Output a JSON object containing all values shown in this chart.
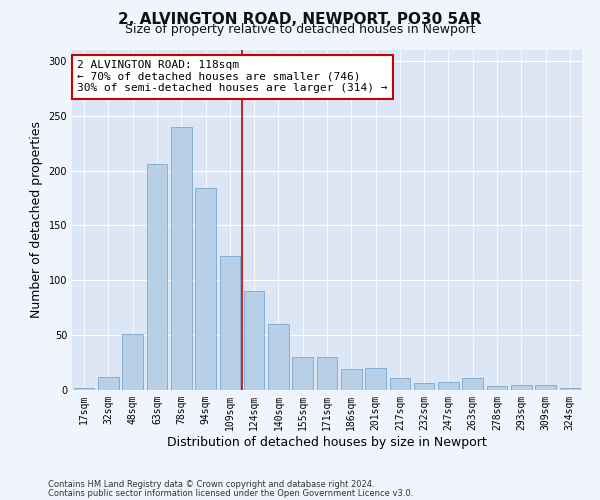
{
  "title": "2, ALVINGTON ROAD, NEWPORT, PO30 5AR",
  "subtitle": "Size of property relative to detached houses in Newport",
  "xlabel": "Distribution of detached houses by size in Newport",
  "ylabel": "Number of detached properties",
  "categories": [
    "17sqm",
    "32sqm",
    "48sqm",
    "63sqm",
    "78sqm",
    "94sqm",
    "109sqm",
    "124sqm",
    "140sqm",
    "155sqm",
    "171sqm",
    "186sqm",
    "201sqm",
    "217sqm",
    "232sqm",
    "247sqm",
    "263sqm",
    "278sqm",
    "293sqm",
    "309sqm",
    "324sqm"
  ],
  "values": [
    2,
    12,
    51,
    206,
    240,
    184,
    122,
    90,
    60,
    30,
    30,
    19,
    20,
    11,
    6,
    7,
    11,
    4,
    5,
    5,
    2
  ],
  "bar_color": "#b8cfe8",
  "bar_edge_color": "#7aaad0",
  "bg_color": "#dce6f5",
  "grid_color": "#ffffff",
  "fig_bg_color": "#f0f4fc",
  "vline_x_index": 6.5,
  "vline_color": "#cc0000",
  "annotation_text": "2 ALVINGTON ROAD: 118sqm\n← 70% of detached houses are smaller (746)\n30% of semi-detached houses are larger (314) →",
  "annotation_box_facecolor": "#ffffff",
  "annotation_box_edgecolor": "#cc0000",
  "footer1": "Contains HM Land Registry data © Crown copyright and database right 2024.",
  "footer2": "Contains public sector information licensed under the Open Government Licence v3.0.",
  "ylim": [
    0,
    310
  ],
  "yticks": [
    0,
    50,
    100,
    150,
    200,
    250,
    300
  ],
  "title_fontsize": 11,
  "subtitle_fontsize": 9,
  "ylabel_fontsize": 9,
  "xlabel_fontsize": 9,
  "tick_fontsize": 7,
  "footer_fontsize": 6,
  "annotation_fontsize": 8
}
